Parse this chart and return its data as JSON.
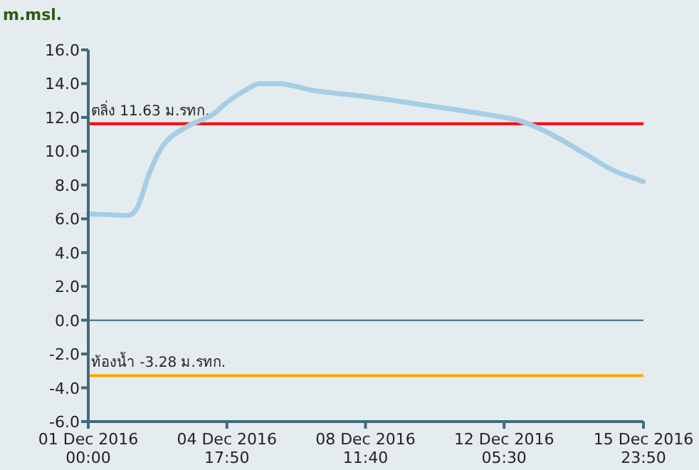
{
  "chart_data": {
    "type": "line",
    "ylabel": "m.msl.",
    "x": [
      "2016-12-01T00:00",
      "2016-12-02T02:00",
      "2016-12-02T08:00",
      "2016-12-02T16:00",
      "2016-12-03T01:00",
      "2016-12-03T15:00",
      "2016-12-04T09:00",
      "2016-12-04T18:00",
      "2016-12-05T05:30",
      "2016-12-05T15:00",
      "2016-12-06T03:00",
      "2016-12-07T02:00",
      "2016-12-08T15:00",
      "2016-12-10T04:00",
      "2016-12-11T16:30",
      "2016-12-12T15:30",
      "2016-12-13T10:00",
      "2016-12-14T09:00",
      "2016-12-15T03:30",
      "2016-12-15T23:50"
    ],
    "series": [
      {
        "color": "#a6cde6",
        "values": [
          6.3,
          6.2,
          6.7,
          8.8,
          10.4,
          11.4,
          12.2,
          12.9,
          13.6,
          14.0,
          14.0,
          13.6,
          13.2,
          12.7,
          12.2,
          11.8,
          11.1,
          9.9,
          8.9,
          8.2
        ]
      }
    ],
    "xlim": [
      "2016-12-01T00:00",
      "2016-12-15T23:50"
    ],
    "xticks": [
      {
        "value": "2016-12-01T00:00",
        "label": "01 Dec 2016 00:00"
      },
      {
        "value": "2016-12-04T17:50",
        "label": "04 Dec 2016 17:50"
      },
      {
        "value": "2016-12-08T11:40",
        "label": "08 Dec 2016 11:40"
      },
      {
        "value": "2016-12-12T05:30",
        "label": "12 Dec 2016 05:30"
      },
      {
        "value": "2016-12-15T23:50",
        "label": "15 Dec 2016 23:50"
      }
    ],
    "ylim": [
      -6,
      16
    ],
    "yticks": [
      {
        "value": -6,
        "label": "-6.0"
      },
      {
        "value": -4,
        "label": "-4.0"
      },
      {
        "value": -2,
        "label": "-2.0"
      },
      {
        "value": 0,
        "label": "0.0"
      },
      {
        "value": 2,
        "label": "2.0"
      },
      {
        "value": 4,
        "label": "4.0"
      },
      {
        "value": 6,
        "label": "6.0"
      },
      {
        "value": 8,
        "label": "8.0"
      },
      {
        "value": 10,
        "label": "10.0"
      },
      {
        "value": 12,
        "label": "12.0"
      },
      {
        "value": 14,
        "label": "14.0"
      },
      {
        "value": 16,
        "label": "16.0"
      }
    ],
    "ref_lines": [
      {
        "axis": "y",
        "value": 11.63,
        "label": "ตลิ่ง 11.63 ม.รทก.",
        "color": "#ff0000"
      },
      {
        "axis": "y",
        "value": -3.28,
        "label": "ท้องน้ำ -3.28 ม.รทก.",
        "color": "#ffa500"
      },
      {
        "axis": "y",
        "value": 0,
        "color": "#3d6b7d"
      }
    ],
    "grid": false,
    "marker": "none",
    "line_style": "solid"
  }
}
